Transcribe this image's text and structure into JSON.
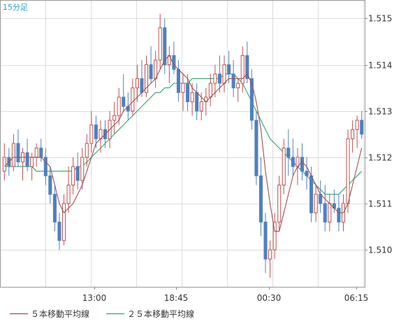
{
  "chart_data": {
    "type": "candlestick",
    "timeframe_label": "15分足",
    "x_tick_labels": [
      "13:00",
      "18:45",
      "00:30",
      "06:15"
    ],
    "y_tick_labels": [
      "1.515",
      "1.514",
      "1.513",
      "1.512",
      "1.511",
      "1.510"
    ],
    "ylim": [
      1.5092,
      1.5154
    ],
    "grid": true,
    "legend_position": "bottom-left",
    "colors": {
      "up": "#c0504d",
      "down": "#4f81bd",
      "ma5": "#a0504d",
      "ma25": "#2ea56b",
      "grid": "#dcdcdc",
      "axis": "#888888",
      "text": "#333333",
      "title": "#2a9fd6"
    },
    "series": [
      {
        "name": "５本移動平均線",
        "key": "ma5"
      },
      {
        "name": "２５本移動平均線",
        "key": "ma25"
      }
    ],
    "candles": [
      [
        1.5117,
        1.5123,
        1.5115,
        1.512
      ],
      [
        1.512,
        1.5122,
        1.5116,
        1.5118
      ],
      [
        1.5118,
        1.5125,
        1.5117,
        1.5123
      ],
      [
        1.5123,
        1.5126,
        1.5118,
        1.5119
      ],
      [
        1.5119,
        1.5122,
        1.5115,
        1.5121
      ],
      [
        1.5121,
        1.5124,
        1.5117,
        1.5118
      ],
      [
        1.5118,
        1.5121,
        1.5115,
        1.512
      ],
      [
        1.512,
        1.5123,
        1.5118,
        1.5122
      ],
      [
        1.5122,
        1.5124,
        1.5119,
        1.512
      ],
      [
        1.512,
        1.5122,
        1.5114,
        1.5116
      ],
      [
        1.5116,
        1.5118,
        1.511,
        1.5112
      ],
      [
        1.5112,
        1.5114,
        1.5104,
        1.5106
      ],
      [
        1.5106,
        1.5108,
        1.51,
        1.5102
      ],
      [
        1.5102,
        1.5112,
        1.5101,
        1.511
      ],
      [
        1.511,
        1.5118,
        1.5108,
        1.5114
      ],
      [
        1.5114,
        1.512,
        1.5112,
        1.5118
      ],
      [
        1.5118,
        1.5121,
        1.5113,
        1.5115
      ],
      [
        1.5115,
        1.5122,
        1.5113,
        1.512
      ],
      [
        1.512,
        1.5125,
        1.5118,
        1.5123
      ],
      [
        1.5123,
        1.513,
        1.5121,
        1.5127
      ],
      [
        1.5127,
        1.5129,
        1.5122,
        1.5124
      ],
      [
        1.5124,
        1.5128,
        1.5121,
        1.5126
      ],
      [
        1.5126,
        1.5128,
        1.5122,
        1.5124
      ],
      [
        1.5124,
        1.513,
        1.5122,
        1.5128
      ],
      [
        1.5128,
        1.5132,
        1.5125,
        1.5129
      ],
      [
        1.5129,
        1.5135,
        1.5127,
        1.5133
      ],
      [
        1.5133,
        1.5138,
        1.513,
        1.5131
      ],
      [
        1.5131,
        1.5134,
        1.5128,
        1.513
      ],
      [
        1.513,
        1.5137,
        1.5129,
        1.5135
      ],
      [
        1.5135,
        1.514,
        1.5132,
        1.5137
      ],
      [
        1.5137,
        1.5141,
        1.5133,
        1.5134
      ],
      [
        1.5134,
        1.5142,
        1.5133,
        1.514
      ],
      [
        1.514,
        1.5144,
        1.5136,
        1.5137
      ],
      [
        1.5137,
        1.5143,
        1.5135,
        1.5141
      ],
      [
        1.5141,
        1.5151,
        1.5139,
        1.5148
      ],
      [
        1.5148,
        1.515,
        1.5138,
        1.514
      ],
      [
        1.514,
        1.5144,
        1.5136,
        1.5142
      ],
      [
        1.5142,
        1.5145,
        1.5138,
        1.5139
      ],
      [
        1.5139,
        1.5141,
        1.5132,
        1.5134
      ],
      [
        1.5134,
        1.5138,
        1.513,
        1.5136
      ],
      [
        1.5136,
        1.5138,
        1.513,
        1.5132
      ],
      [
        1.5132,
        1.5136,
        1.5129,
        1.5134
      ],
      [
        1.5134,
        1.5136,
        1.5128,
        1.513
      ],
      [
        1.513,
        1.5134,
        1.5128,
        1.5132
      ],
      [
        1.5132,
        1.5135,
        1.5129,
        1.5133
      ],
      [
        1.5133,
        1.5138,
        1.5131,
        1.5136
      ],
      [
        1.5136,
        1.514,
        1.5133,
        1.5138
      ],
      [
        1.5138,
        1.5142,
        1.5134,
        1.5136
      ],
      [
        1.5136,
        1.5142,
        1.5134,
        1.514
      ],
      [
        1.514,
        1.5143,
        1.5136,
        1.5138
      ],
      [
        1.5138,
        1.5141,
        1.5133,
        1.5135
      ],
      [
        1.5135,
        1.5137,
        1.5132,
        1.5136
      ],
      [
        1.5136,
        1.5144,
        1.5134,
        1.5142
      ],
      [
        1.5142,
        1.5145,
        1.5136,
        1.5137
      ],
      [
        1.5137,
        1.5139,
        1.5126,
        1.5128
      ],
      [
        1.5128,
        1.513,
        1.5114,
        1.5116
      ],
      [
        1.5116,
        1.512,
        1.5103,
        1.5106
      ],
      [
        1.5106,
        1.5108,
        1.5095,
        1.5098
      ],
      [
        1.5098,
        1.5102,
        1.5094,
        1.51
      ],
      [
        1.51,
        1.5108,
        1.5098,
        1.5106
      ],
      [
        1.5106,
        1.5116,
        1.5104,
        1.5114
      ],
      [
        1.5114,
        1.5124,
        1.5112,
        1.5122
      ],
      [
        1.5122,
        1.5126,
        1.5116,
        1.512
      ],
      [
        1.512,
        1.5124,
        1.5116,
        1.5118
      ],
      [
        1.5118,
        1.5122,
        1.5114,
        1.512
      ],
      [
        1.512,
        1.5123,
        1.5115,
        1.5117
      ],
      [
        1.5117,
        1.512,
        1.5113,
        1.5116
      ],
      [
        1.5116,
        1.5118,
        1.5106,
        1.5108
      ],
      [
        1.5108,
        1.5114,
        1.5106,
        1.5112
      ],
      [
        1.5112,
        1.5115,
        1.5108,
        1.511
      ],
      [
        1.511,
        1.5114,
        1.5104,
        1.5106
      ],
      [
        1.5106,
        1.5112,
        1.5104,
        1.511
      ],
      [
        1.511,
        1.5113,
        1.5108,
        1.5109
      ],
      [
        1.5109,
        1.5112,
        1.5104,
        1.5106
      ],
      [
        1.5106,
        1.5112,
        1.5104,
        1.511
      ],
      [
        1.511,
        1.5126,
        1.5108,
        1.5124
      ],
      [
        1.5124,
        1.5128,
        1.5121,
        1.5126
      ],
      [
        1.5126,
        1.5129,
        1.5122,
        1.5128
      ],
      [
        1.5128,
        1.513,
        1.5124,
        1.5125
      ]
    ],
    "ma5": [
      1.5118,
      1.5119,
      1.512,
      1.512,
      1.512,
      1.512,
      1.512,
      1.512,
      1.512,
      1.5119,
      1.5118,
      1.5114,
      1.511,
      1.5108,
      1.5109,
      1.511,
      1.5112,
      1.5114,
      1.5117,
      1.512,
      1.5123,
      1.5124,
      1.5125,
      1.5126,
      1.5127,
      1.5128,
      1.513,
      1.5131,
      1.5132,
      1.5133,
      1.5134,
      1.5135,
      1.5136,
      1.5137,
      1.5139,
      1.5141,
      1.5142,
      1.514,
      1.5139,
      1.5138,
      1.5137,
      1.5135,
      1.5134,
      1.5133,
      1.5132,
      1.5133,
      1.5134,
      1.5135,
      1.5136,
      1.5137,
      1.5137,
      1.5137,
      1.5137,
      1.5138,
      1.5136,
      1.5132,
      1.5126,
      1.5117,
      1.511,
      1.5104,
      1.5104,
      1.5108,
      1.5112,
      1.5116,
      1.5118,
      1.5119,
      1.5118,
      1.5116,
      1.5114,
      1.5112,
      1.5111,
      1.511,
      1.5109,
      1.5108,
      1.5108,
      1.511,
      1.5114,
      1.5118,
      1.5122
    ],
    "ma25": [
      1.5118,
      1.5118,
      1.5118,
      1.5118,
      1.5118,
      1.5118,
      1.5118,
      1.5117,
      1.5117,
      1.5117,
      1.5117,
      1.5117,
      1.5117,
      1.5117,
      1.5117,
      1.5117,
      1.5118,
      1.5118,
      1.5119,
      1.512,
      1.5121,
      1.5122,
      1.5123,
      1.5124,
      1.5125,
      1.5126,
      1.5127,
      1.5128,
      1.5129,
      1.513,
      1.5131,
      1.5132,
      1.5133,
      1.5134,
      1.5134,
      1.5135,
      1.5135,
      1.5136,
      1.5136,
      1.5136,
      1.5136,
      1.5137,
      1.5137,
      1.5137,
      1.5137,
      1.5137,
      1.5137,
      1.5137,
      1.5138,
      1.5138,
      1.5138,
      1.5137,
      1.5136,
      1.5134,
      1.5132,
      1.513,
      1.5128,
      1.5126,
      1.5124,
      1.5123,
      1.5122,
      1.5121,
      1.512,
      1.5119,
      1.5118,
      1.5117,
      1.5116,
      1.5115,
      1.5114,
      1.5113,
      1.5112,
      1.5112,
      1.5112,
      1.5112,
      1.5113,
      1.5114,
      1.5115,
      1.5116,
      1.5117
    ]
  }
}
